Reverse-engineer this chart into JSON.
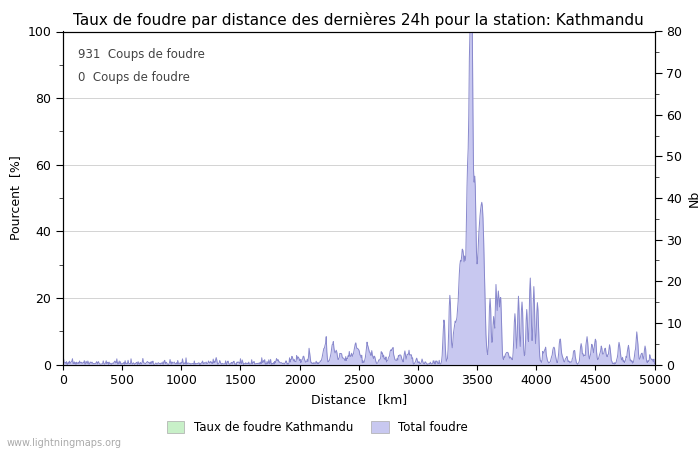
{
  "title": "Taux de foudre par distance des dernières 24h pour la station: Kathmandu",
  "xlabel": "Distance   [km]",
  "ylabel_left": "Pourcent  [%]",
  "ylabel_right": "Nb",
  "annotation_line1": "931  Coups de foudre",
  "annotation_line2": "0  Coups de foudre",
  "legend_label1": "Taux de foudre Kathmandu",
  "legend_label2": "Total foudre",
  "watermark": "www.lightningmaps.org",
  "xlim": [
    0,
    5000
  ],
  "ylim_left": [
    0,
    100
  ],
  "ylim_right": [
    0,
    80
  ],
  "color_fill_green": "#c8f0c8",
  "color_fill_blue": "#c8c8f0",
  "color_line_blue": "#8888cc",
  "color_grid": "#cccccc",
  "background": "#ffffff",
  "title_fontsize": 11,
  "axis_fontsize": 9,
  "tick_fontsize": 9
}
